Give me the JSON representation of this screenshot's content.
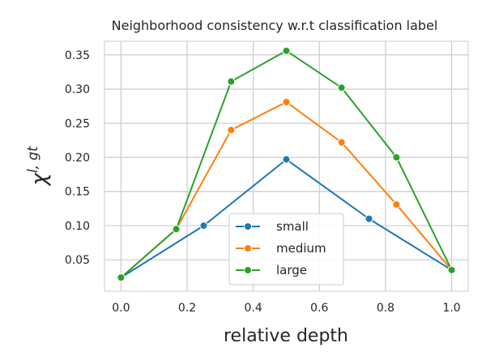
{
  "chart_data": {
    "type": "line",
    "title": "Neighborhood consistency w.r.t classification label",
    "xlabel": "relative depth",
    "ylabel_base": "χ",
    "ylabel_sup": "l, gt",
    "xlim": [
      -0.05,
      1.05
    ],
    "ylim": [
      0.004,
      0.37
    ],
    "xticks": [
      0.0,
      0.2,
      0.4,
      0.6,
      0.8,
      1.0
    ],
    "xtick_labels": [
      "0.0",
      "0.2",
      "0.4",
      "0.6",
      "0.8",
      "1.0"
    ],
    "yticks": [
      0.05,
      0.1,
      0.15,
      0.2,
      0.25,
      0.3,
      0.35
    ],
    "ytick_labels": [
      "0.05",
      "0.10",
      "0.15",
      "0.20",
      "0.25",
      "0.30",
      "0.35"
    ],
    "grid": true,
    "legend_placement": "lower-center",
    "series": [
      {
        "name": "small",
        "color": "#1f77b4",
        "x": [
          0.0,
          0.25,
          0.5,
          0.75,
          1.0
        ],
        "y": [
          0.024,
          0.1,
          0.197,
          0.11,
          0.035
        ]
      },
      {
        "name": "medium",
        "color": "#ff7f0e",
        "x": [
          0.0,
          0.167,
          0.333,
          0.5,
          0.667,
          0.833,
          1.0
        ],
        "y": [
          0.024,
          0.095,
          0.24,
          0.281,
          0.222,
          0.131,
          0.035
        ]
      },
      {
        "name": "large",
        "color": "#2ca02c",
        "x": [
          0.0,
          0.167,
          0.333,
          0.5,
          0.667,
          0.833,
          1.0
        ],
        "y": [
          0.024,
          0.095,
          0.311,
          0.356,
          0.302,
          0.2,
          0.035
        ]
      }
    ]
  }
}
